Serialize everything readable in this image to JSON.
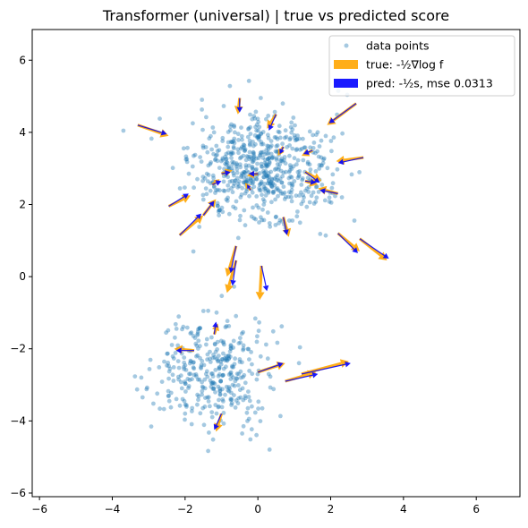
{
  "chart_data": {
    "type": "scatter",
    "title": "Transformer (universal) |  true vs predicted score",
    "xlabel": "",
    "ylabel": "",
    "xlim": [
      -6.2,
      7.2
    ],
    "ylim": [
      -6.1,
      6.85
    ],
    "xticks": [
      -6,
      -4,
      -2,
      0,
      2,
      4,
      6
    ],
    "yticks": [
      -6,
      -4,
      -2,
      0,
      2,
      4,
      6
    ],
    "grid": false,
    "legend_position": "top-right",
    "colors": {
      "points": "#1f77b4",
      "true": "#ffa500",
      "pred": "#0000ff"
    },
    "legend": [
      {
        "label": "data points",
        "kind": "point"
      },
      {
        "label": "true: -½∇log f",
        "kind": "true"
      },
      {
        "label": "pred: -½s, mse 0.0313",
        "kind": "pred"
      }
    ],
    "clusters": [
      {
        "center": [
          0.1,
          2.95
        ],
        "std": [
          0.95,
          0.75
        ],
        "count": 620
      },
      {
        "center": [
          -1.2,
          -2.65
        ],
        "std": [
          0.75,
          0.75
        ],
        "count": 360
      }
    ],
    "arrows": [
      {
        "x": 0.5,
        "y": 4.5,
        "tx": -0.25,
        "ty": -0.4,
        "px": -0.2,
        "py": -0.45
      },
      {
        "x": 2.7,
        "y": 4.8,
        "tx": -0.8,
        "ty": -0.6,
        "px": -0.75,
        "py": -0.55
      },
      {
        "x": -0.5,
        "y": 4.95,
        "tx": -0.05,
        "ty": -0.45,
        "px": 0.0,
        "py": -0.4
      },
      {
        "x": -3.3,
        "y": 4.2,
        "tx": 0.85,
        "ty": -0.3,
        "px": 0.8,
        "py": -0.25
      },
      {
        "x": 0.7,
        "y": 3.6,
        "tx": -0.15,
        "ty": -0.25,
        "px": -0.1,
        "py": -0.2
      },
      {
        "x": 1.5,
        "y": 3.5,
        "tx": -0.3,
        "ty": -0.15,
        "px": -0.25,
        "py": -0.1
      },
      {
        "x": 2.9,
        "y": 3.3,
        "tx": -0.75,
        "ty": -0.1,
        "px": -0.7,
        "py": -0.15
      },
      {
        "x": -1.0,
        "y": 2.85,
        "tx": 0.3,
        "ty": 0.1,
        "px": 0.25,
        "py": 0.05
      },
      {
        "x": 0.0,
        "y": 2.85,
        "tx": -0.3,
        "ty": -0.05,
        "px": -0.25,
        "py": 0.0
      },
      {
        "x": -0.2,
        "y": 2.4,
        "tx": -0.15,
        "ty": 0.2,
        "px": -0.1,
        "py": 0.15
      },
      {
        "x": -1.25,
        "y": 2.55,
        "tx": 0.2,
        "ty": 0.15,
        "px": 0.25,
        "py": 0.1
      },
      {
        "x": 1.3,
        "y": 2.9,
        "tx": 0.45,
        "ty": -0.25,
        "px": 0.4,
        "py": -0.3
      },
      {
        "x": 1.3,
        "y": 2.65,
        "tx": 0.35,
        "ty": -0.1,
        "px": 0.3,
        "py": -0.05
      },
      {
        "x": 2.2,
        "y": 2.3,
        "tx": -0.55,
        "ty": 0.15,
        "px": -0.5,
        "py": 0.1
      },
      {
        "x": -2.45,
        "y": 1.95,
        "tx": 0.6,
        "ty": 0.3,
        "px": 0.55,
        "py": 0.35
      },
      {
        "x": -1.5,
        "y": 1.7,
        "tx": 0.35,
        "ty": 0.45,
        "px": 0.3,
        "py": 0.4
      },
      {
        "x": -2.15,
        "y": 1.15,
        "tx": 0.65,
        "ty": 0.55,
        "px": 0.6,
        "py": 0.6
      },
      {
        "x": 0.7,
        "y": 1.65,
        "tx": 0.15,
        "ty": -0.55,
        "px": 0.1,
        "py": -0.5
      },
      {
        "x": 2.2,
        "y": 1.2,
        "tx": 0.6,
        "ty": -0.5,
        "px": 0.55,
        "py": -0.55
      },
      {
        "x": 2.8,
        "y": 1.05,
        "tx": 0.75,
        "ty": -0.6,
        "px": 0.8,
        "py": -0.55
      },
      {
        "x": -0.6,
        "y": 0.85,
        "tx": -0.25,
        "ty": -0.85,
        "px": -0.15,
        "py": -0.75
      },
      {
        "x": -0.6,
        "y": 0.45,
        "tx": -0.25,
        "ty": -0.9,
        "px": -0.1,
        "py": -0.7
      },
      {
        "x": 0.1,
        "y": 0.3,
        "tx": -0.05,
        "ty": -0.95,
        "px": 0.15,
        "py": -0.7
      },
      {
        "x": -1.2,
        "y": -1.6,
        "tx": 0.1,
        "ty": 0.3,
        "px": 0.05,
        "py": 0.35
      },
      {
        "x": -1.75,
        "y": -2.05,
        "tx": -0.55,
        "ty": 0.05,
        "px": -0.5,
        "py": 0.0
      },
      {
        "x": 0.0,
        "y": -2.65,
        "tx": 0.75,
        "ty": 0.25,
        "px": 0.7,
        "py": 0.25
      },
      {
        "x": 1.2,
        "y": -2.7,
        "tx": 1.3,
        "ty": 0.35,
        "px": 1.35,
        "py": 0.3
      },
      {
        "x": 0.75,
        "y": -2.9,
        "tx": 0.85,
        "ty": 0.25,
        "px": 0.9,
        "py": 0.2
      },
      {
        "x": -1.0,
        "y": -3.8,
        "tx": -0.15,
        "ty": -0.5,
        "px": -0.2,
        "py": -0.45
      }
    ]
  }
}
